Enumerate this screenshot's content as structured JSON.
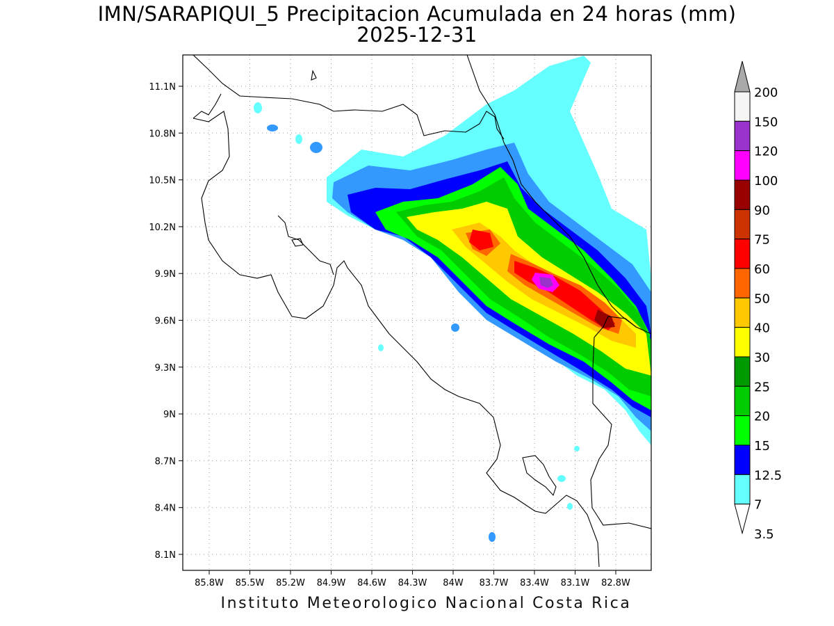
{
  "title_line1": "IMN/SARAPIQUI_5 Precipitacion Acumulada en 24 horas (mm)",
  "title_line2": "2025-12-31",
  "credit": "Instituto Meteorologico Nacional Costa Rica",
  "map": {
    "lon_ticks": [
      "85.8W",
      "85.5W",
      "85.2W",
      "84.9W",
      "84.6W",
      "84.3W",
      "84W",
      "83.7W",
      "83.4W",
      "83.1W",
      "82.8W"
    ],
    "lat_ticks": [
      "11.1N",
      "10.8N",
      "10.5N",
      "10.2N",
      "9.9N",
      "9.6N",
      "9.3N",
      "9N",
      "8.7N",
      "8.4N",
      "8.1N"
    ]
  },
  "colorbar": {
    "labels": [
      "200",
      "150",
      "120",
      "100",
      "90",
      "75",
      "60",
      "50",
      "40",
      "30",
      "25",
      "20",
      "15",
      "12.5",
      "7",
      "3.5"
    ],
    "colors": [
      "#a9a9a9",
      "#f5f5f5",
      "#9933cc",
      "#ff00ff",
      "#990000",
      "#cc3300",
      "#ff0000",
      "#ff6600",
      "#ffc800",
      "#ffff00",
      "#009900",
      "#00cc00",
      "#00ff00",
      "#0000ff",
      "#3399ff",
      "#66ffff"
    ]
  }
}
